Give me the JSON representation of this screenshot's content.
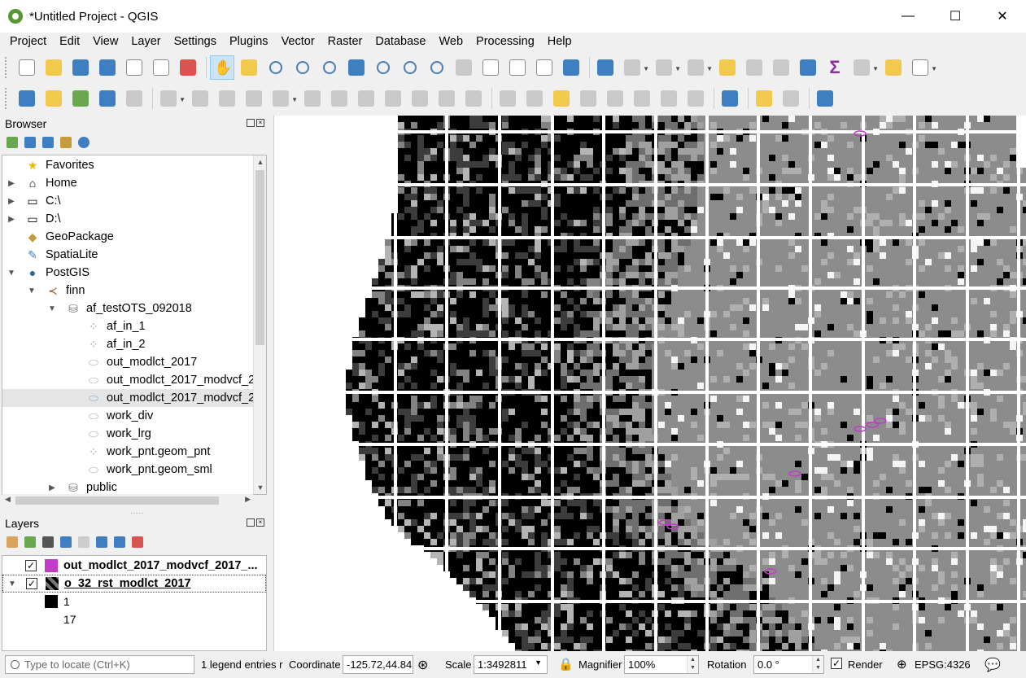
{
  "window": {
    "title": "*Untitled Project - QGIS",
    "controls": {
      "minimize": "—",
      "maximize": "☐",
      "close": "✕"
    }
  },
  "menu": [
    "Project",
    "Edit",
    "View",
    "Layer",
    "Settings",
    "Plugins",
    "Vector",
    "Raster",
    "Database",
    "Web",
    "Processing",
    "Help"
  ],
  "browser": {
    "title": "Browser",
    "items": [
      {
        "label": "Favorites",
        "icon": "star-icon"
      },
      {
        "label": "Home",
        "icon": "home-folder-icon"
      },
      {
        "label": "C:\\",
        "icon": "folder-icon"
      },
      {
        "label": "D:\\",
        "icon": "folder-icon"
      },
      {
        "label": "GeoPackage",
        "icon": "geopackage-icon"
      },
      {
        "label": "SpatiaLite",
        "icon": "spatialite-icon"
      },
      {
        "label": "PostGIS",
        "icon": "postgis-elephant-icon"
      },
      {
        "label": "finn",
        "icon": "connection-icon"
      },
      {
        "label": "af_testOTS_092018",
        "icon": "database-schema-icon"
      },
      {
        "label": "af_in_1",
        "icon": "point-layer-icon"
      },
      {
        "label": "af_in_2",
        "icon": "point-layer-icon"
      },
      {
        "label": "out_modlct_2017",
        "icon": "polygon-layer-icon"
      },
      {
        "label": "out_modlct_2017_modvcf_2",
        "icon": "polygon-layer-icon"
      },
      {
        "label": "out_modlct_2017_modvcf_2",
        "icon": "polygon-layer-icon"
      },
      {
        "label": "work_div",
        "icon": "polygon-layer-icon"
      },
      {
        "label": "work_lrg",
        "icon": "polygon-layer-icon"
      },
      {
        "label": "work_pnt.geom_pnt",
        "icon": "point-layer-icon"
      },
      {
        "label": "work_pnt.geom_sml",
        "icon": "polygon-layer-icon"
      },
      {
        "label": "public",
        "icon": "database-schema-icon"
      }
    ]
  },
  "layers": {
    "title": "Layers",
    "items": [
      {
        "label": "out_modlct_2017_modvcf_2017_...",
        "color": "#c03cc8",
        "checked": "✓"
      },
      {
        "label": "o_32_rst_modlct_2017",
        "checked": "✓"
      }
    ],
    "legend": [
      "1",
      "17"
    ]
  },
  "status": {
    "locate_placeholder": "Type to locate (Ctrl+K)",
    "legend_entries": "1 legend entries r",
    "coordinate_label": "Coordinate",
    "coordinate_value": "-125.72,44.84",
    "scale_label": "Scale",
    "scale_value": "1:3492811",
    "magnifier_label": "Magnifier",
    "magnifier_value": "100%",
    "rotation_label": "Rotation",
    "rotation_value": "0.0 °",
    "render_label": "Render",
    "render_checked": "✓",
    "crs": "EPSG:4326"
  }
}
